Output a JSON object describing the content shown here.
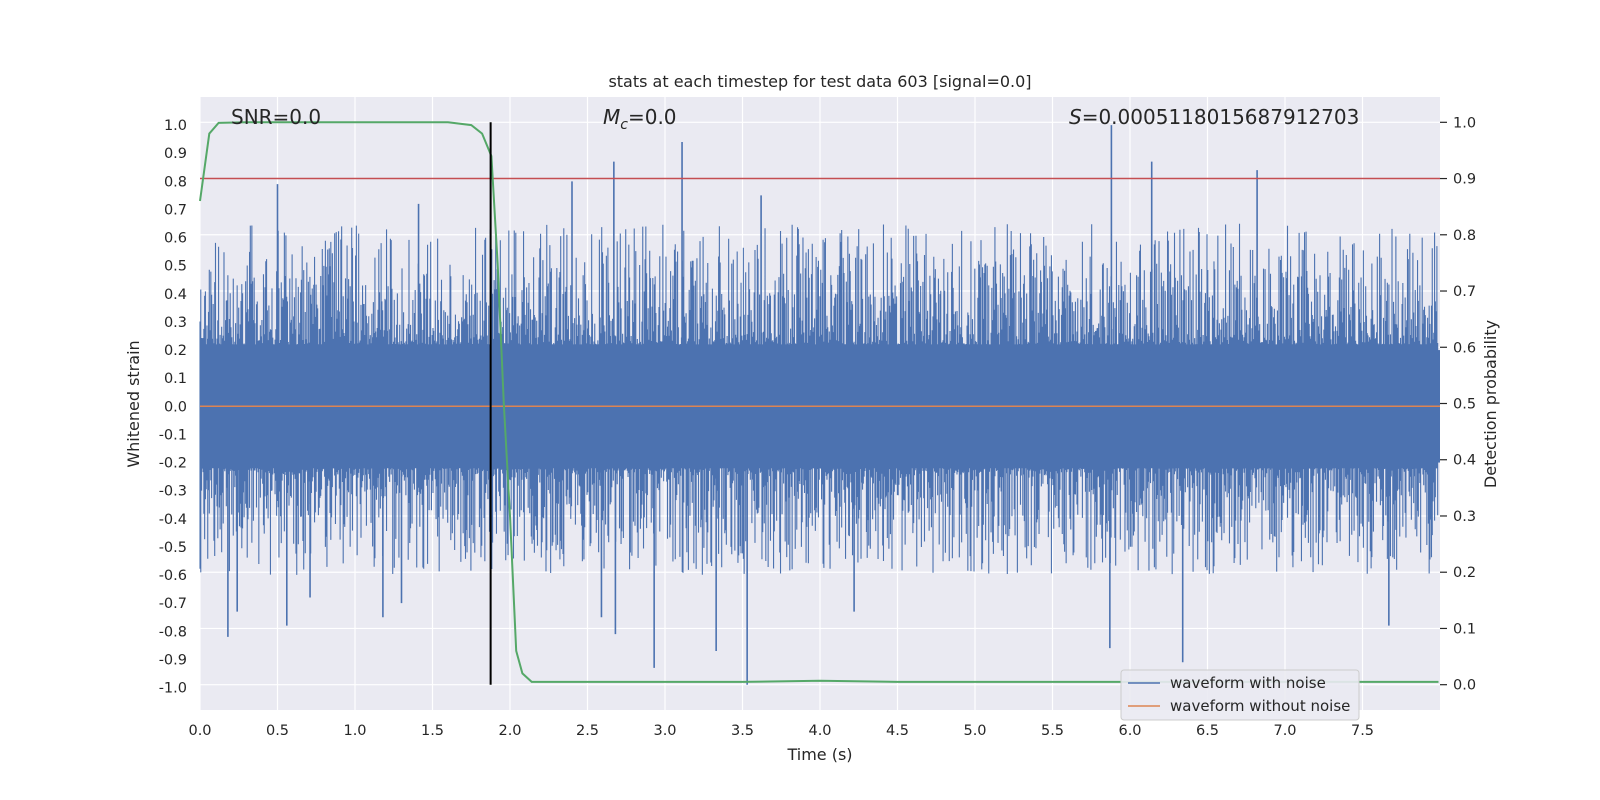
{
  "chart_data": {
    "type": "line",
    "title": "stats at each timestep for test data 603 [signal=0.0]",
    "xlabel": "Time (s)",
    "ylabel": "Whitened strain",
    "y2label": "Detection probability",
    "xlim": [
      0.0,
      8.0
    ],
    "ylim": [
      -1.08,
      1.1
    ],
    "y2lim": [
      -0.045,
      1.045
    ],
    "x_ticks": [
      "0.0",
      "0.5",
      "1.0",
      "1.5",
      "2.0",
      "2.5",
      "3.0",
      "3.5",
      "4.0",
      "4.5",
      "5.0",
      "5.5",
      "6.0",
      "6.5",
      "7.0",
      "7.5"
    ],
    "y_ticks": [
      "1.0",
      "0.9",
      "0.8",
      "0.7",
      "0.6",
      "0.5",
      "0.4",
      "0.3",
      "0.2",
      "0.1",
      "0.0",
      "-0.1",
      "-0.2",
      "-0.3",
      "-0.4",
      "-0.5",
      "-0.6",
      "-0.7",
      "-0.8",
      "-0.9",
      "-1.0"
    ],
    "y2_ticks": [
      "1.0",
      "0.9",
      "0.8",
      "0.7",
      "0.6",
      "0.5",
      "0.4",
      "0.3",
      "0.2",
      "0.1",
      "0.0"
    ],
    "grid": true,
    "legend_position": "lower-right",
    "annotations": {
      "snr": "SNR=0.0",
      "mc_symbol": "M",
      "mc_sub": "c",
      "mc_value": "=0.0",
      "s_symbol": "S",
      "s_value": "=0.0005118015687912703"
    },
    "series": [
      {
        "name": "waveform with noise",
        "axis": "left",
        "color": "#4c72b0",
        "envelope_typical": [
          -0.45,
          0.45
        ],
        "spikes": [
          {
            "x": 0.18,
            "y": -0.82
          },
          {
            "x": 0.24,
            "y": -0.73
          },
          {
            "x": 0.5,
            "y": 0.79
          },
          {
            "x": 0.56,
            "y": -0.78
          },
          {
            "x": 0.71,
            "y": -0.68
          },
          {
            "x": 1.18,
            "y": -0.75
          },
          {
            "x": 1.3,
            "y": -0.7
          },
          {
            "x": 1.41,
            "y": 0.72
          },
          {
            "x": 2.4,
            "y": 0.8
          },
          {
            "x": 2.59,
            "y": -0.75
          },
          {
            "x": 2.67,
            "y": 0.87
          },
          {
            "x": 2.68,
            "y": -0.81
          },
          {
            "x": 2.93,
            "y": -0.93
          },
          {
            "x": 3.11,
            "y": 0.94
          },
          {
            "x": 3.33,
            "y": -0.87
          },
          {
            "x": 3.53,
            "y": -0.99
          },
          {
            "x": 3.62,
            "y": 0.75
          },
          {
            "x": 4.22,
            "y": -0.73
          },
          {
            "x": 5.87,
            "y": -0.86
          },
          {
            "x": 5.88,
            "y": 1.0
          },
          {
            "x": 6.14,
            "y": 0.87
          },
          {
            "x": 6.34,
            "y": -0.91
          },
          {
            "x": 6.82,
            "y": 0.84
          },
          {
            "x": 7.67,
            "y": -0.78
          }
        ]
      },
      {
        "name": "waveform without noise",
        "axis": "left",
        "color": "#dd8452",
        "x": [
          0.0,
          8.0
        ],
        "y": [
          0.0,
          0.0
        ]
      },
      {
        "name": "detection probability",
        "axis": "right",
        "color": "#55a868",
        "x": [
          0.0,
          0.06,
          0.12,
          0.3,
          1.2,
          1.6,
          1.75,
          1.82,
          1.88,
          1.92,
          1.96,
          2.0,
          2.04,
          2.08,
          2.14,
          2.5,
          3.0,
          3.5,
          4.0,
          4.5,
          5.0,
          5.5,
          6.0,
          6.5,
          7.0,
          7.5,
          7.99
        ],
        "y": [
          0.86,
          0.98,
          0.999,
          1.0,
          1.0,
          1.0,
          0.995,
          0.98,
          0.94,
          0.75,
          0.5,
          0.3,
          0.06,
          0.02,
          0.005,
          0.005,
          0.005,
          0.005,
          0.007,
          0.005,
          0.005,
          0.005,
          0.005,
          0.005,
          0.005,
          0.005,
          0.005
        ]
      }
    ],
    "reference_lines": {
      "threshold_probability": 0.9,
      "threshold_color": "#c44e52",
      "vertical_time": 1.875,
      "vertical_color": "#000000"
    }
  }
}
